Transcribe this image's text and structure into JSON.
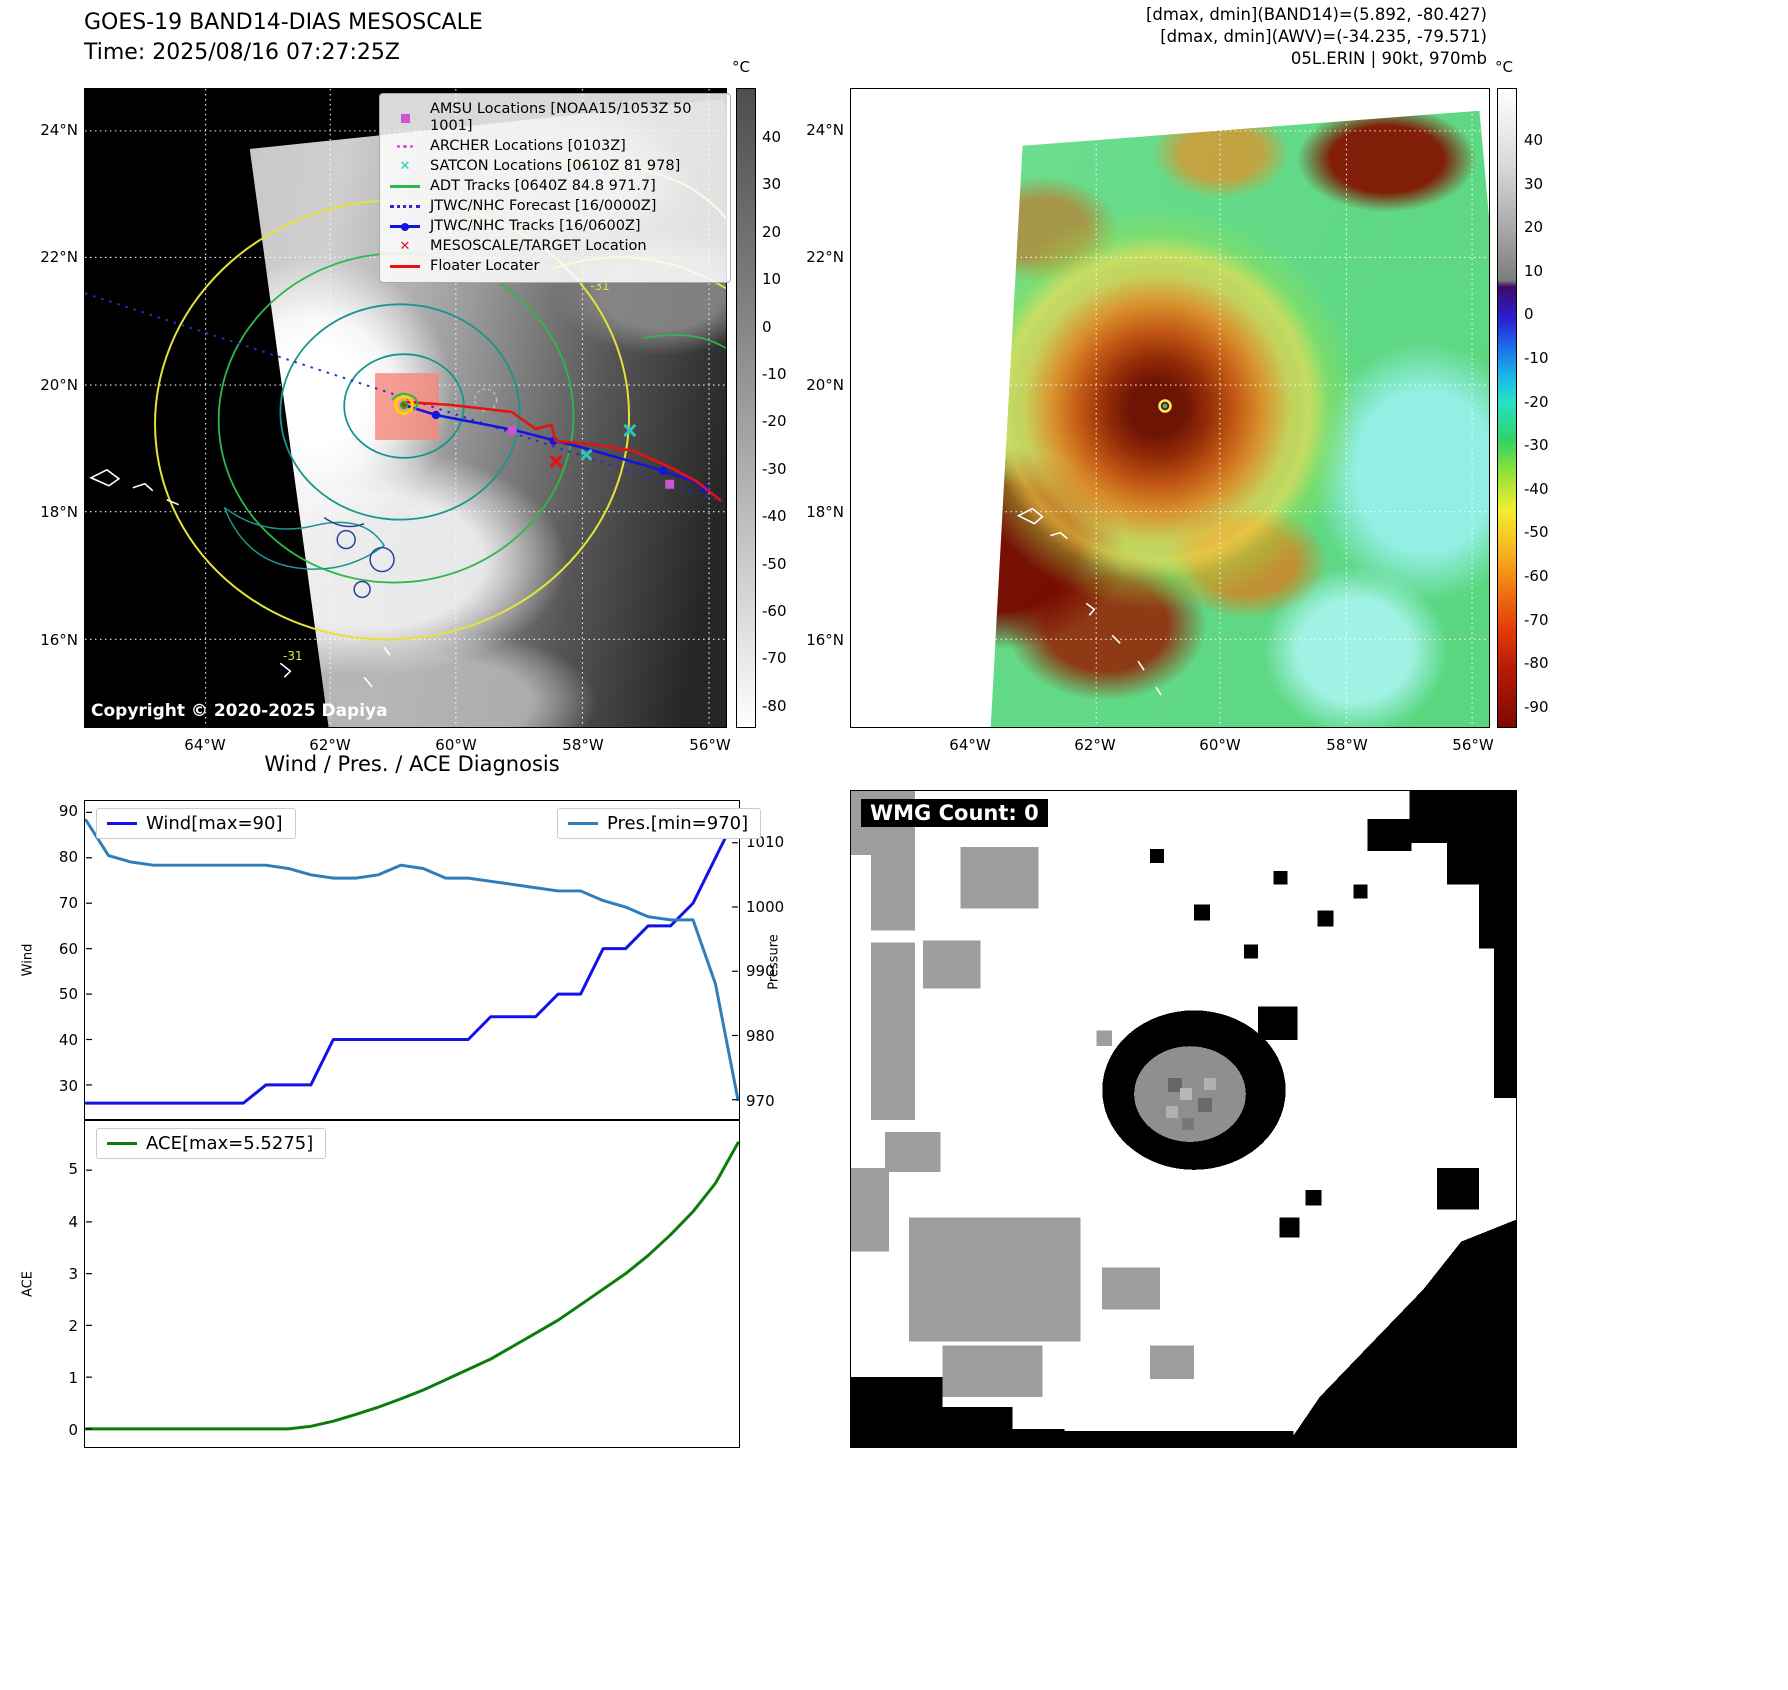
{
  "panel_tl": {
    "title": "GOES-19 BAND14-DIAS MESOSCALE",
    "time_label": "Time: 2025/08/16 07:27:25Z",
    "copyright": "Copyright © 2020-2025 Dapiya",
    "colorbar_unit": "°C",
    "colorbar_ticks": [
      "40",
      "30",
      "20",
      "10",
      "0",
      "-10",
      "-20",
      "-30",
      "-40",
      "-50",
      "-60",
      "-70",
      "-80"
    ],
    "lat_ticks": [
      "24°N",
      "22°N",
      "20°N",
      "18°N",
      "16°N"
    ],
    "lon_ticks": [
      "64°W",
      "62°W",
      "60°W",
      "58°W",
      "56°W"
    ],
    "contour_label": "-31",
    "legend": [
      {
        "label": "AMSU Locations [NOAA15/1053Z 50 1001]",
        "marker": "square",
        "color": "#cf54cf"
      },
      {
        "label": "ARCHER Locations [0103Z]",
        "marker": "dots",
        "color": "#cf54cf"
      },
      {
        "label": "SATCON Locations [0610Z 81 978]",
        "marker": "x",
        "color": "#28c8b8"
      },
      {
        "label": "ADT Tracks [0640Z 84.8 971.7]",
        "marker": "line",
        "color": "#2eb84a"
      },
      {
        "label": "JTWC/NHC Forecast [16/0000Z]",
        "marker": "dotted-line",
        "color": "#2a2ad0"
      },
      {
        "label": "JTWC/NHC Tracks [16/0600Z]",
        "marker": "line-dot",
        "color": "#1414e0"
      },
      {
        "label": "MESOSCALE/TARGET Location",
        "marker": "x",
        "color": "#e51212"
      },
      {
        "label": "Floater Locater",
        "marker": "line",
        "color": "#e51212"
      }
    ]
  },
  "panel_tr": {
    "header_lines": [
      "[dmax, dmin](BAND14)=(5.892, -80.427)",
      "[dmax, dmin](AWV)=(-34.235, -79.571)",
      "05L.ERIN | 90kt, 970mb"
    ],
    "colorbar_unit": "°C",
    "colorbar_ticks": [
      "40",
      "30",
      "20",
      "10",
      "0",
      "-10",
      "-20",
      "-30",
      "-40",
      "-50",
      "-60",
      "-70",
      "-80",
      "-90"
    ],
    "lat_ticks": [
      "24°N",
      "22°N",
      "20°N",
      "18°N",
      "16°N"
    ],
    "lon_ticks": [
      "64°W",
      "62°W",
      "60°W",
      "58°W",
      "56°W"
    ]
  },
  "panel_br": {
    "wmg_label": "WMG Count: 0"
  },
  "chart_data": [
    {
      "type": "line",
      "title": "Wind / Pres. / ACE Diagnosis",
      "x": [
        0,
        1,
        2,
        3,
        4,
        5,
        6,
        7,
        8,
        9,
        10,
        11,
        12,
        13,
        14,
        15,
        16,
        17,
        18,
        19,
        20,
        21,
        22,
        23,
        24,
        25,
        26,
        27,
        28,
        29
      ],
      "series": [
        {
          "name": "Wind[max=90]",
          "axis": "left",
          "color": "#1212e8",
          "values": [
            26,
            26,
            26,
            26,
            26,
            26,
            26,
            26,
            30,
            30,
            30,
            40,
            40,
            40,
            40,
            40,
            40,
            40,
            45,
            45,
            45,
            50,
            50,
            60,
            60,
            65,
            65,
            70,
            80,
            90
          ]
        },
        {
          "name": "Pres.[min=970]",
          "axis": "right",
          "color": "#2e7ebc",
          "values": [
            1013.5,
            1008,
            1007,
            1006.5,
            1006.5,
            1006.5,
            1006.5,
            1006.5,
            1006.5,
            1006,
            1005,
            1004.5,
            1004.5,
            1005,
            1006.5,
            1006,
            1004.5,
            1004.5,
            1004,
            1003.5,
            1003,
            1002.5,
            1002.5,
            1001,
            1000,
            998.5,
            998,
            998,
            988,
            970
          ]
        }
      ],
      "ylabel_left": "Wind",
      "ylabel_right": "Pressure",
      "ylim_left": [
        22.5,
        92.5
      ],
      "yticks_left": [
        30,
        40,
        50,
        60,
        70,
        80,
        90
      ],
      "ylim_right": [
        967,
        1016.5
      ],
      "yticks_right": [
        970,
        980,
        990,
        1000,
        1010
      ],
      "xticks": [],
      "grid": false,
      "legend_position": "upper left / upper right"
    },
    {
      "type": "line",
      "x": [
        0,
        1,
        2,
        3,
        4,
        5,
        6,
        7,
        8,
        9,
        10,
        11,
        12,
        13,
        14,
        15,
        16,
        17,
        18,
        19,
        20,
        21,
        22,
        23,
        24,
        25,
        26,
        27,
        28,
        29
      ],
      "series": [
        {
          "name": "ACE[max=5.5275]",
          "color": "#0a7d0a",
          "values": [
            0,
            0,
            0,
            0,
            0,
            0,
            0,
            0,
            0,
            0,
            0.05,
            0.15,
            0.28,
            0.42,
            0.58,
            0.75,
            0.95,
            1.15,
            1.35,
            1.6,
            1.85,
            2.1,
            2.4,
            2.7,
            3.0,
            3.35,
            3.75,
            4.2,
            4.75,
            5.5275
          ]
        }
      ],
      "ylabel": "ACE",
      "ylim": [
        -0.35,
        5.95
      ],
      "yticks": [
        0,
        1,
        2,
        3,
        4,
        5
      ],
      "xticks": [],
      "grid": false,
      "legend_position": "upper left"
    }
  ]
}
